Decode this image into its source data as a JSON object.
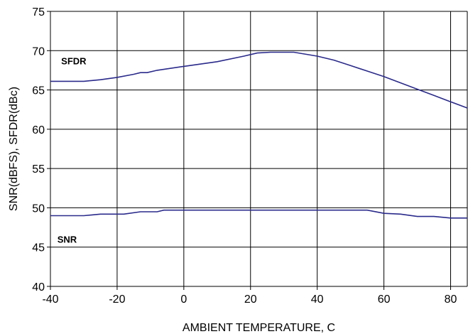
{
  "chart_data": {
    "type": "line",
    "title": "",
    "xlabel": "AMBIENT TEMPERATURE, C",
    "ylabel": "SNR(dBFS), SFDR(dBc)",
    "xlim": [
      -40,
      85
    ],
    "ylim": [
      40,
      75
    ],
    "x_ticks": [
      -40,
      -20,
      0,
      20,
      40,
      60,
      80
    ],
    "y_ticks": [
      40,
      45,
      50,
      55,
      60,
      65,
      70,
      75
    ],
    "grid": true,
    "series": [
      {
        "name": "SFDR",
        "color": "#2a2a8c",
        "points": [
          [
            -40,
            66.1
          ],
          [
            -30,
            66.1
          ],
          [
            -25,
            66.3
          ],
          [
            -20,
            66.6
          ],
          [
            -15,
            67.0
          ],
          [
            -13,
            67.2
          ],
          [
            -11,
            67.2
          ],
          [
            -8,
            67.5
          ],
          [
            0,
            68.0
          ],
          [
            10,
            68.6
          ],
          [
            18,
            69.3
          ],
          [
            22,
            69.7
          ],
          [
            26,
            69.8
          ],
          [
            33,
            69.8
          ],
          [
            40,
            69.3
          ],
          [
            45,
            68.8
          ],
          [
            50,
            68.1
          ],
          [
            55,
            67.4
          ],
          [
            60,
            66.7
          ],
          [
            65,
            65.9
          ],
          [
            70,
            65.1
          ],
          [
            75,
            64.3
          ],
          [
            80,
            63.5
          ],
          [
            85,
            62.7
          ]
        ]
      },
      {
        "name": "SNR",
        "color": "#2a2a8c",
        "points": [
          [
            -40,
            49.0
          ],
          [
            -30,
            49.0
          ],
          [
            -25,
            49.2
          ],
          [
            -18,
            49.2
          ],
          [
            -13,
            49.5
          ],
          [
            -8,
            49.5
          ],
          [
            -6,
            49.7
          ],
          [
            0,
            49.7
          ],
          [
            20,
            49.7
          ],
          [
            40,
            49.7
          ],
          [
            55,
            49.7
          ],
          [
            60,
            49.3
          ],
          [
            65,
            49.2
          ],
          [
            70,
            48.9
          ],
          [
            75,
            48.9
          ],
          [
            80,
            48.7
          ],
          [
            85,
            48.7
          ]
        ]
      }
    ],
    "labels": [
      {
        "text": "SFDR",
        "x": -33,
        "y": 68.7
      },
      {
        "text": "SNR",
        "x": -35,
        "y": 46.0
      }
    ]
  }
}
